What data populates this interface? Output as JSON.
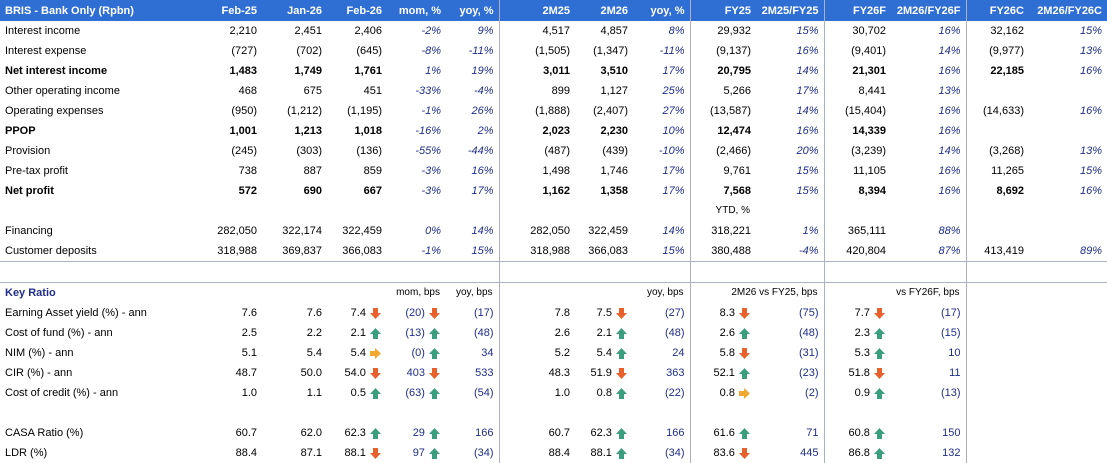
{
  "title": "BRIS - Bank Only (Rpbn)",
  "headers": [
    "Feb-25",
    "Jan-26",
    "Feb-26",
    "mom, %",
    "yoy, %",
    "2M25",
    "2M26",
    "yoy, %",
    "FY25",
    "2M25/FY25",
    "FY26F",
    "2M26/FY26F",
    "FY26C",
    "2M26/FY26C"
  ],
  "rows": [
    {
      "label": "Interest income",
      "bold": false,
      "v": [
        "2,210",
        "2,451",
        "2,406",
        "-2%",
        "9%",
        "4,517",
        "4,857",
        "8%",
        "29,932",
        "15%",
        "30,702",
        "16%",
        "32,162",
        "15%"
      ]
    },
    {
      "label": "Interest expense",
      "bold": false,
      "v": [
        "(727)",
        "(702)",
        "(645)",
        "-8%",
        "-11%",
        "(1,505)",
        "(1,347)",
        "-11%",
        "(9,137)",
        "16%",
        "(9,401)",
        "14%",
        "(9,977)",
        "13%"
      ]
    },
    {
      "label": "Net interest income",
      "bold": true,
      "v": [
        "1,483",
        "1,749",
        "1,761",
        "1%",
        "19%",
        "3,011",
        "3,510",
        "17%",
        "20,795",
        "14%",
        "21,301",
        "16%",
        "22,185",
        "16%"
      ]
    },
    {
      "label": "Other operating income",
      "bold": false,
      "v": [
        "468",
        "675",
        "451",
        "-33%",
        "-4%",
        "899",
        "1,127",
        "25%",
        "5,266",
        "17%",
        "8,441",
        "13%",
        "",
        ""
      ]
    },
    {
      "label": "Operating expenses",
      "bold": false,
      "v": [
        "(950)",
        "(1,212)",
        "(1,195)",
        "-1%",
        "26%",
        "(1,888)",
        "(2,407)",
        "27%",
        "(13,587)",
        "14%",
        "(15,404)",
        "16%",
        "(14,633)",
        "16%"
      ]
    },
    {
      "label": "PPOP",
      "bold": true,
      "v": [
        "1,001",
        "1,213",
        "1,018",
        "-16%",
        "2%",
        "2,023",
        "2,230",
        "10%",
        "12,474",
        "16%",
        "14,339",
        "16%",
        "",
        ""
      ]
    },
    {
      "label": "Provision",
      "bold": false,
      "v": [
        "(245)",
        "(303)",
        "(136)",
        "-55%",
        "-44%",
        "(487)",
        "(439)",
        "-10%",
        "(2,466)",
        "20%",
        "(3,239)",
        "14%",
        "(3,268)",
        "13%"
      ]
    },
    {
      "label": "Pre-tax profit",
      "bold": false,
      "v": [
        "738",
        "887",
        "859",
        "-3%",
        "16%",
        "1,498",
        "1,746",
        "17%",
        "9,761",
        "15%",
        "11,105",
        "16%",
        "11,265",
        "15%"
      ]
    },
    {
      "label": "Net profit",
      "bold": true,
      "v": [
        "572",
        "690",
        "667",
        "-3%",
        "17%",
        "1,162",
        "1,358",
        "17%",
        "7,568",
        "15%",
        "8,394",
        "16%",
        "8,692",
        "16%"
      ]
    }
  ],
  "ytd_label": "YTD, %",
  "balance_rows": [
    {
      "label": "Financing",
      "v": [
        "282,050",
        "322,174",
        "322,459",
        "0%",
        "14%",
        "282,050",
        "322,459",
        "14%",
        "318,221",
        "1%",
        "365,111",
        "88%",
        "",
        ""
      ]
    },
    {
      "label": "Customer deposits",
      "v": [
        "318,988",
        "369,837",
        "366,083",
        "-1%",
        "15%",
        "318,988",
        "366,083",
        "15%",
        "380,488",
        "-4%",
        "420,804",
        "87%",
        "413,419",
        "89%"
      ]
    }
  ],
  "key_ratio": {
    "title": "Key Ratio",
    "sub_mom": "mom, bps",
    "sub_yoy": "yoy, bps",
    "sub_2m_yoy": "yoy, bps",
    "sub_fy25": "2M26 vs FY25, bps",
    "sub_fy26f": "vs FY26F, bps",
    "rows": [
      {
        "label": "Earning Asset yield (%) - ann",
        "feb25": "7.6",
        "jan26": "7.6",
        "feb26": "7.4",
        "a1": "down",
        "mom": "(20)",
        "a2": "down",
        "yoy": "(17)",
        "m25": "7.8",
        "m26": "7.5",
        "a3": "down",
        "yoy2": "(27)",
        "fy25": "8.3",
        "a4": "down",
        "vfy25": "(75)",
        "fy26": "7.7",
        "a5": "down",
        "vfy26": "(17)"
      },
      {
        "label": "Cost of fund (%) - ann",
        "feb25": "2.5",
        "jan26": "2.2",
        "feb26": "2.1",
        "a1": "up",
        "mom": "(13)",
        "a2": "up",
        "yoy": "(48)",
        "m25": "2.6",
        "m26": "2.1",
        "a3": "up",
        "yoy2": "(48)",
        "fy25": "2.6",
        "a4": "up",
        "vfy25": "(48)",
        "fy26": "2.3",
        "a5": "up",
        "vfy26": "(15)"
      },
      {
        "label": "NIM (%) - ann",
        "feb25": "5.1",
        "jan26": "5.4",
        "feb26": "5.4",
        "a1": "side",
        "mom": "(0)",
        "a2": "up",
        "yoy": "34",
        "m25": "5.2",
        "m26": "5.4",
        "a3": "up",
        "yoy2": "24",
        "fy25": "5.8",
        "a4": "down",
        "vfy25": "(31)",
        "fy26": "5.3",
        "a5": "up",
        "vfy26": "10"
      },
      {
        "label": "CIR (%) - ann",
        "feb25": "48.7",
        "jan26": "50.0",
        "feb26": "54.0",
        "a1": "down",
        "mom": "403",
        "a2": "down",
        "yoy": "533",
        "m25": "48.3",
        "m26": "51.9",
        "a3": "down",
        "yoy2": "363",
        "fy25": "52.1",
        "a4": "up",
        "vfy25": "(23)",
        "fy26": "51.8",
        "a5": "down",
        "vfy26": "11"
      },
      {
        "label": "Cost of credit (%) - ann",
        "feb25": "1.0",
        "jan26": "1.1",
        "feb26": "0.5",
        "a1": "up",
        "mom": "(63)",
        "a2": "up",
        "yoy": "(54)",
        "m25": "1.0",
        "m26": "0.8",
        "a3": "up",
        "yoy2": "(22)",
        "fy25": "0.8",
        "a4": "side",
        "vfy25": "(2)",
        "fy26": "0.9",
        "a5": "up",
        "vfy26": "(13)"
      }
    ],
    "rows2": [
      {
        "label": "CASA Ratio (%)",
        "feb25": "60.7",
        "jan26": "62.0",
        "feb26": "62.3",
        "a1": "up",
        "mom": "29",
        "a2": "up",
        "yoy": "166",
        "m25": "60.7",
        "m26": "62.3",
        "a3": "up",
        "yoy2": "166",
        "fy25": "61.6",
        "a4": "up",
        "vfy25": "71",
        "fy26": "60.8",
        "a5": "up",
        "vfy26": "150"
      },
      {
        "label": "LDR (%)",
        "feb25": "88.4",
        "jan26": "87.1",
        "feb26": "88.1",
        "a1": "down",
        "mom": "97",
        "a2": "up",
        "yoy": "(34)",
        "m25": "88.4",
        "m26": "88.1",
        "a3": "up",
        "yoy2": "(34)",
        "fy25": "83.6",
        "a4": "down",
        "vfy25": "445",
        "fy26": "86.8",
        "a5": "up",
        "vfy26": "132"
      }
    ]
  },
  "colors": {
    "header": "#2f6fd4",
    "up": "#3b9e7e",
    "down": "#e8612c",
    "side": "#f0a830",
    "pct": "#1f2e8a"
  }
}
